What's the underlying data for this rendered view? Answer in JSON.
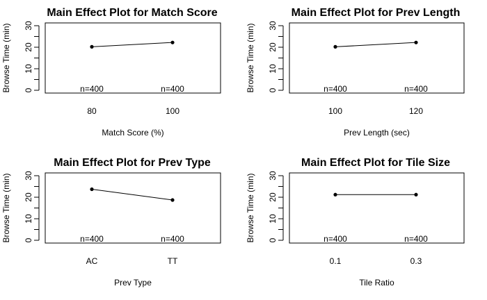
{
  "chart_data": [
    {
      "type": "line",
      "title": "Main Effect Plot for Match Score",
      "xlabel": "Match Score (%)",
      "ylabel": "Browse Time (min)",
      "categories": [
        "80",
        "100"
      ],
      "values": [
        20.2,
        22.2
      ],
      "annotations": [
        "n=400",
        "n=400"
      ],
      "ylim": [
        0,
        30
      ],
      "yticks": [
        "0",
        "10",
        "20",
        "30"
      ]
    },
    {
      "type": "line",
      "title": "Main Effect Plot for Prev Length",
      "xlabel": "Prev Length (sec)",
      "ylabel": "Browse Time (min)",
      "categories": [
        "100",
        "120"
      ],
      "values": [
        20.2,
        22.2
      ],
      "annotations": [
        "n=400",
        "n=400"
      ],
      "ylim": [
        0,
        30
      ],
      "yticks": [
        "0",
        "10",
        "20",
        "30"
      ]
    },
    {
      "type": "line",
      "title": "Main Effect Plot for Prev Type",
      "xlabel": "Prev Type",
      "ylabel": "Browse Time (min)",
      "categories": [
        "AC",
        "TT"
      ],
      "values": [
        23.7,
        18.7
      ],
      "annotations": [
        "n=400",
        "n=400"
      ],
      "ylim": [
        0,
        30
      ],
      "yticks": [
        "0",
        "10",
        "20",
        "30"
      ]
    },
    {
      "type": "line",
      "title": "Main Effect Plot for Tile Size",
      "xlabel": "Tile Ratio",
      "ylabel": "Browse Time (min)",
      "categories": [
        "0.1",
        "0.3"
      ],
      "values": [
        21.2,
        21.2
      ],
      "annotations": [
        "n=400",
        "n=400"
      ],
      "ylim": [
        0,
        30
      ],
      "yticks": [
        "0",
        "10",
        "20",
        "30"
      ]
    }
  ]
}
